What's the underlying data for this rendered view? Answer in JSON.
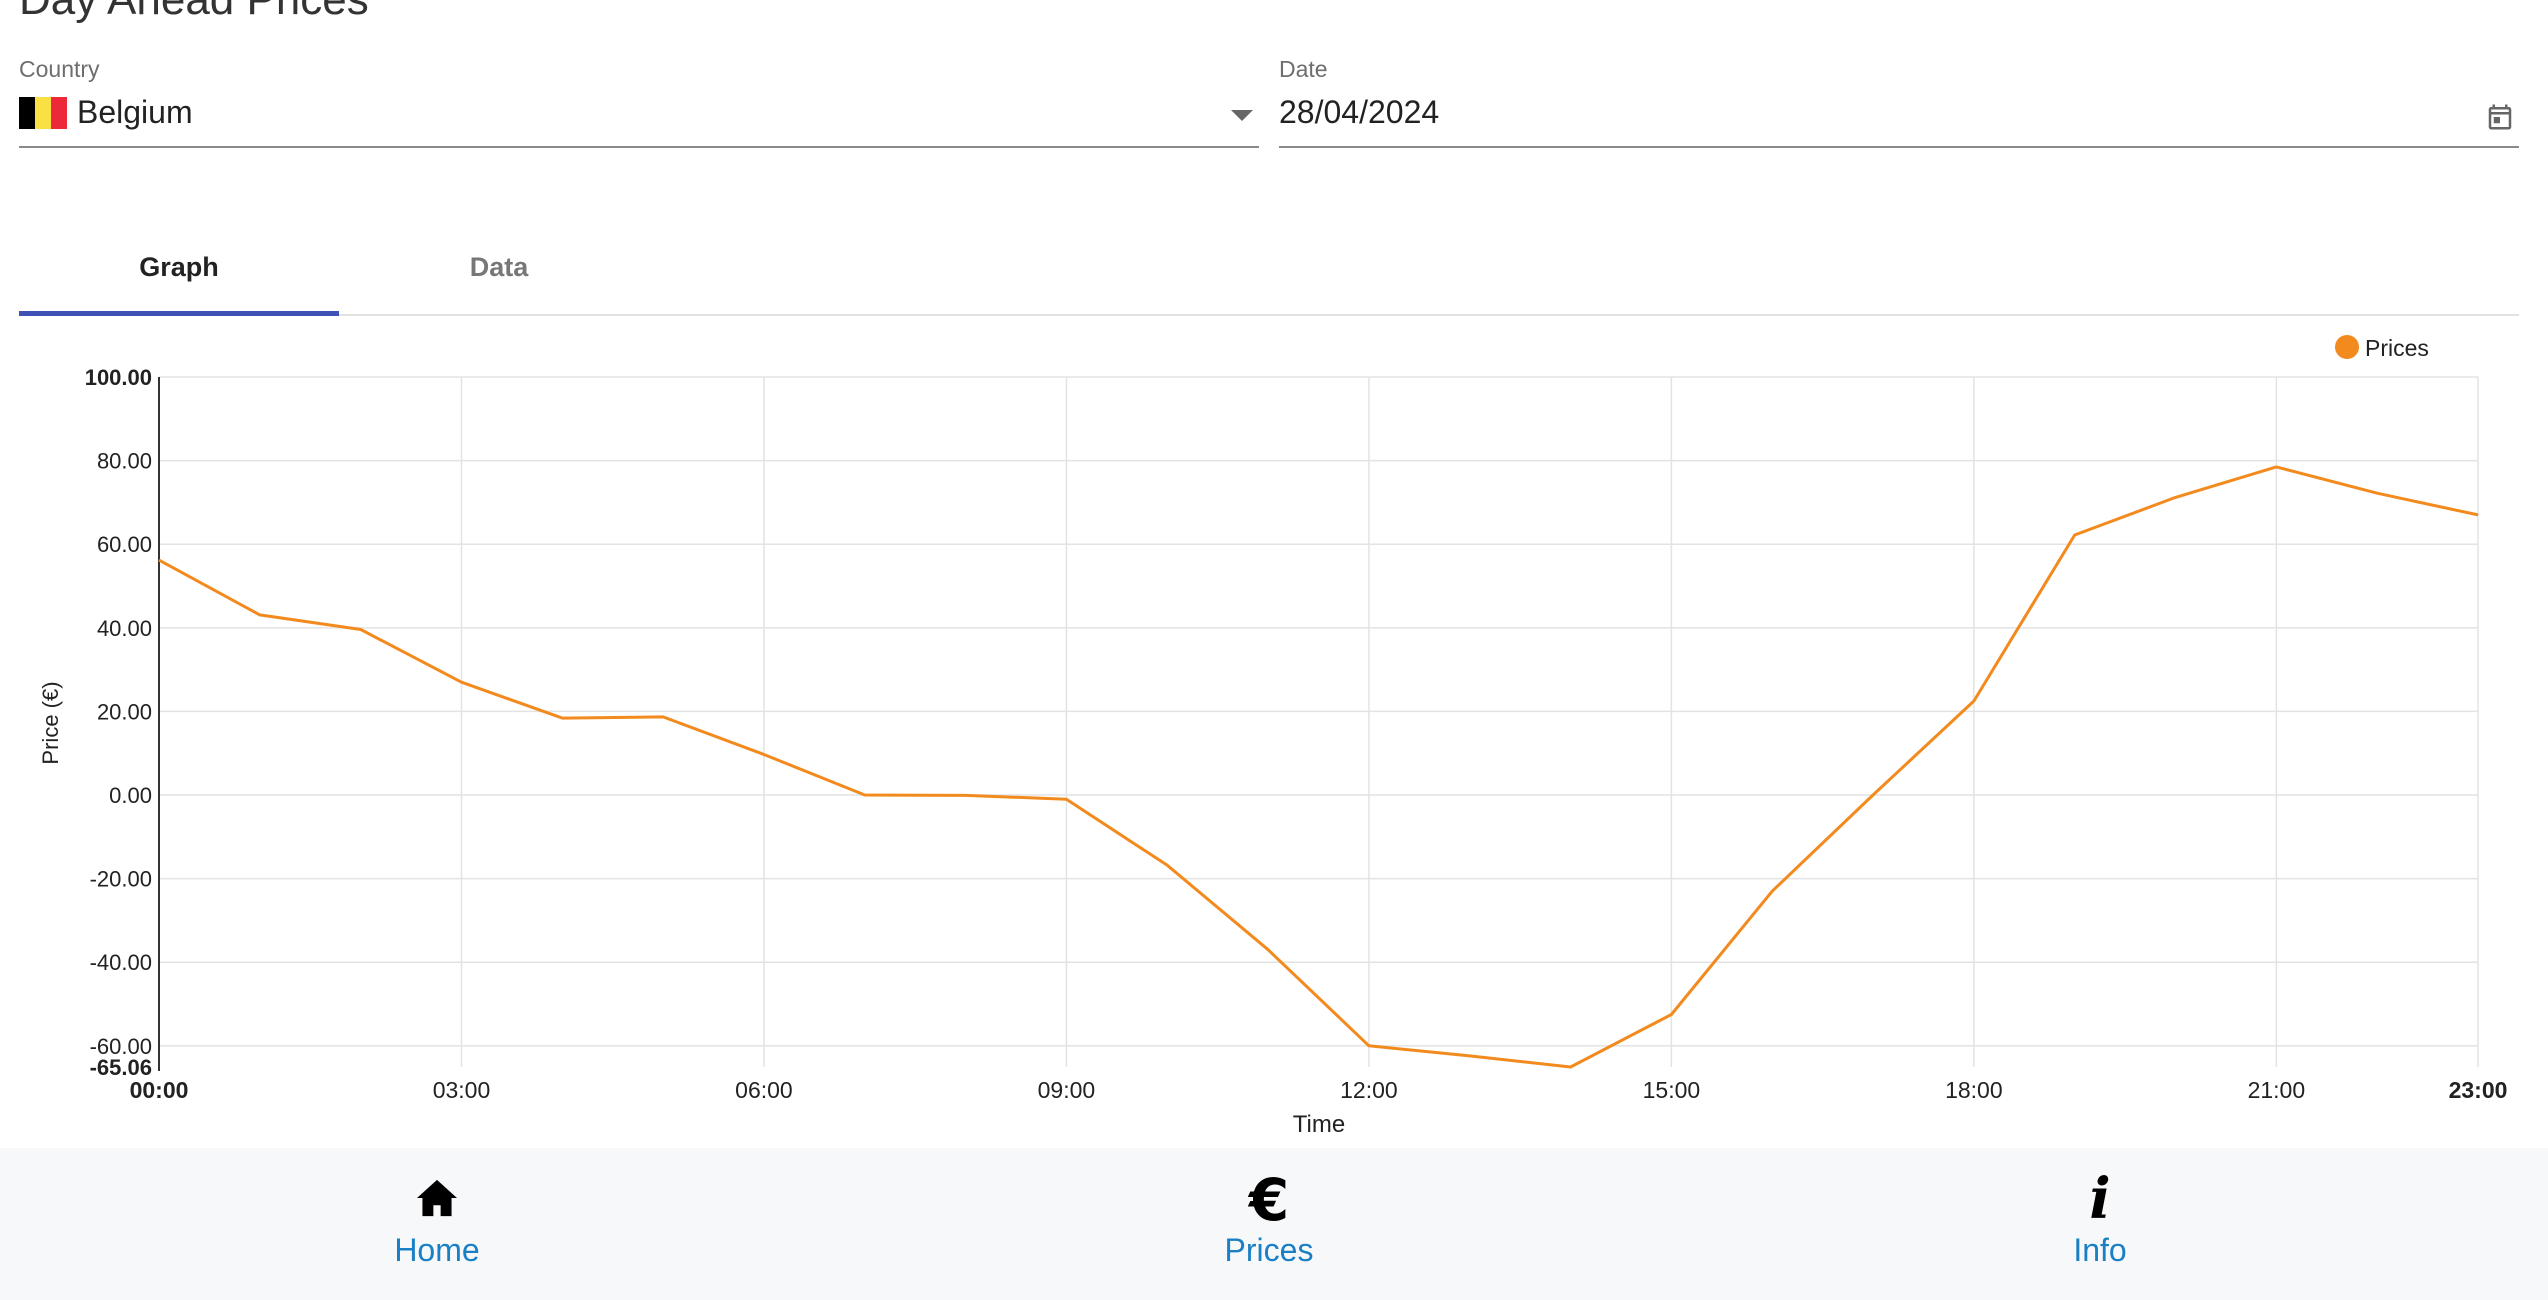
{
  "page": {
    "title": "Day Ahead Prices"
  },
  "filters": {
    "country": {
      "label": "Country",
      "value": "Belgium",
      "flag_colors": [
        "#000000",
        "#FAE042",
        "#ED2939"
      ]
    },
    "date": {
      "label": "Date",
      "value": "28/04/2024"
    }
  },
  "tabs": [
    {
      "label": "Graph",
      "active": true
    },
    {
      "label": "Data",
      "active": false
    }
  ],
  "chart_data": {
    "type": "line",
    "title": "",
    "xlabel": "Time",
    "ylabel": "Price (€)",
    "legend": {
      "position": "top-right"
    },
    "grid": true,
    "series": [
      {
        "name": "Prices",
        "color": "#f28a1e",
        "x": [
          "00:00",
          "01:00",
          "02:00",
          "03:00",
          "04:00",
          "05:00",
          "06:00",
          "07:00",
          "08:00",
          "09:00",
          "10:00",
          "11:00",
          "12:00",
          "13:00",
          "14:00",
          "15:00",
          "16:00",
          "17:00",
          "18:00",
          "19:00",
          "20:00",
          "21:00",
          "22:00",
          "23:00"
        ],
        "values": [
          56.2,
          43.1,
          39.6,
          27.0,
          18.4,
          18.7,
          9.7,
          0.0,
          -0.1,
          -1.0,
          -16.8,
          -37.0,
          -60.0,
          -62.4,
          -65.06,
          -52.5,
          -23.0,
          0.0,
          22.5,
          62.2,
          71.2,
          78.5,
          72.2,
          67.0
        ]
      }
    ],
    "x_ticks": [
      "00:00",
      "03:00",
      "06:00",
      "09:00",
      "12:00",
      "15:00",
      "18:00",
      "21:00",
      "23:00"
    ],
    "y_ticks": [
      100,
      80,
      60,
      40,
      20,
      0,
      -20,
      -40,
      -60
    ],
    "y_tick_labels": [
      "100.00",
      "80.00",
      "60.00",
      "40.00",
      "20.00",
      "0.00",
      "-20.00",
      "-40.00",
      "-60.00"
    ],
    "y_min_label": "-65.06",
    "ylim": [
      -65.06,
      100
    ]
  },
  "nav": [
    {
      "label": "Home",
      "icon": "home-icon"
    },
    {
      "label": "Prices",
      "icon": "euro-icon"
    },
    {
      "label": "Info",
      "icon": "info-icon"
    }
  ],
  "colors": {
    "accent": "#3f51b5",
    "nav_label": "#1a7fc4",
    "line": "#f28a1e"
  }
}
